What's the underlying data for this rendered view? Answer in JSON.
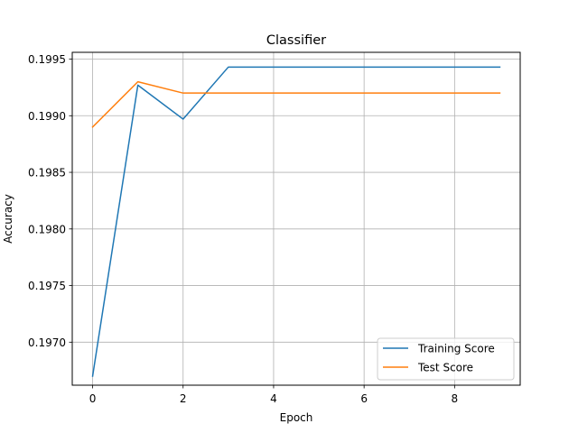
{
  "chart_data": {
    "type": "line",
    "title": "Classifier",
    "xlabel": "Epoch",
    "ylabel": "Accuracy",
    "x": [
      0,
      1,
      2,
      3,
      4,
      5,
      6,
      7,
      8,
      9
    ],
    "xlim": [
      -0.45,
      9.45
    ],
    "ylim": [
      0.19662,
      0.19956
    ],
    "xticks": [
      0,
      2,
      4,
      6,
      8
    ],
    "xtick_labels": [
      "0",
      "2",
      "4",
      "6",
      "8"
    ],
    "yticks": [
      0.197,
      0.1975,
      0.198,
      0.1985,
      0.199,
      0.1995
    ],
    "ytick_labels": [
      "0.1970",
      "0.1975",
      "0.1980",
      "0.1985",
      "0.1990",
      "0.1995"
    ],
    "grid": true,
    "legend_position": "lower-right",
    "series": [
      {
        "name": "Training Score",
        "color": "#1f77b4",
        "values": [
          0.1967,
          0.19927,
          0.19897,
          0.19943,
          0.19943,
          0.19943,
          0.19943,
          0.19943,
          0.19943,
          0.19943
        ]
      },
      {
        "name": "Test Score",
        "color": "#ff7f0e",
        "values": [
          0.1989,
          0.1993,
          0.1992,
          0.1992,
          0.1992,
          0.1992,
          0.1992,
          0.1992,
          0.1992,
          0.1992
        ]
      }
    ]
  }
}
